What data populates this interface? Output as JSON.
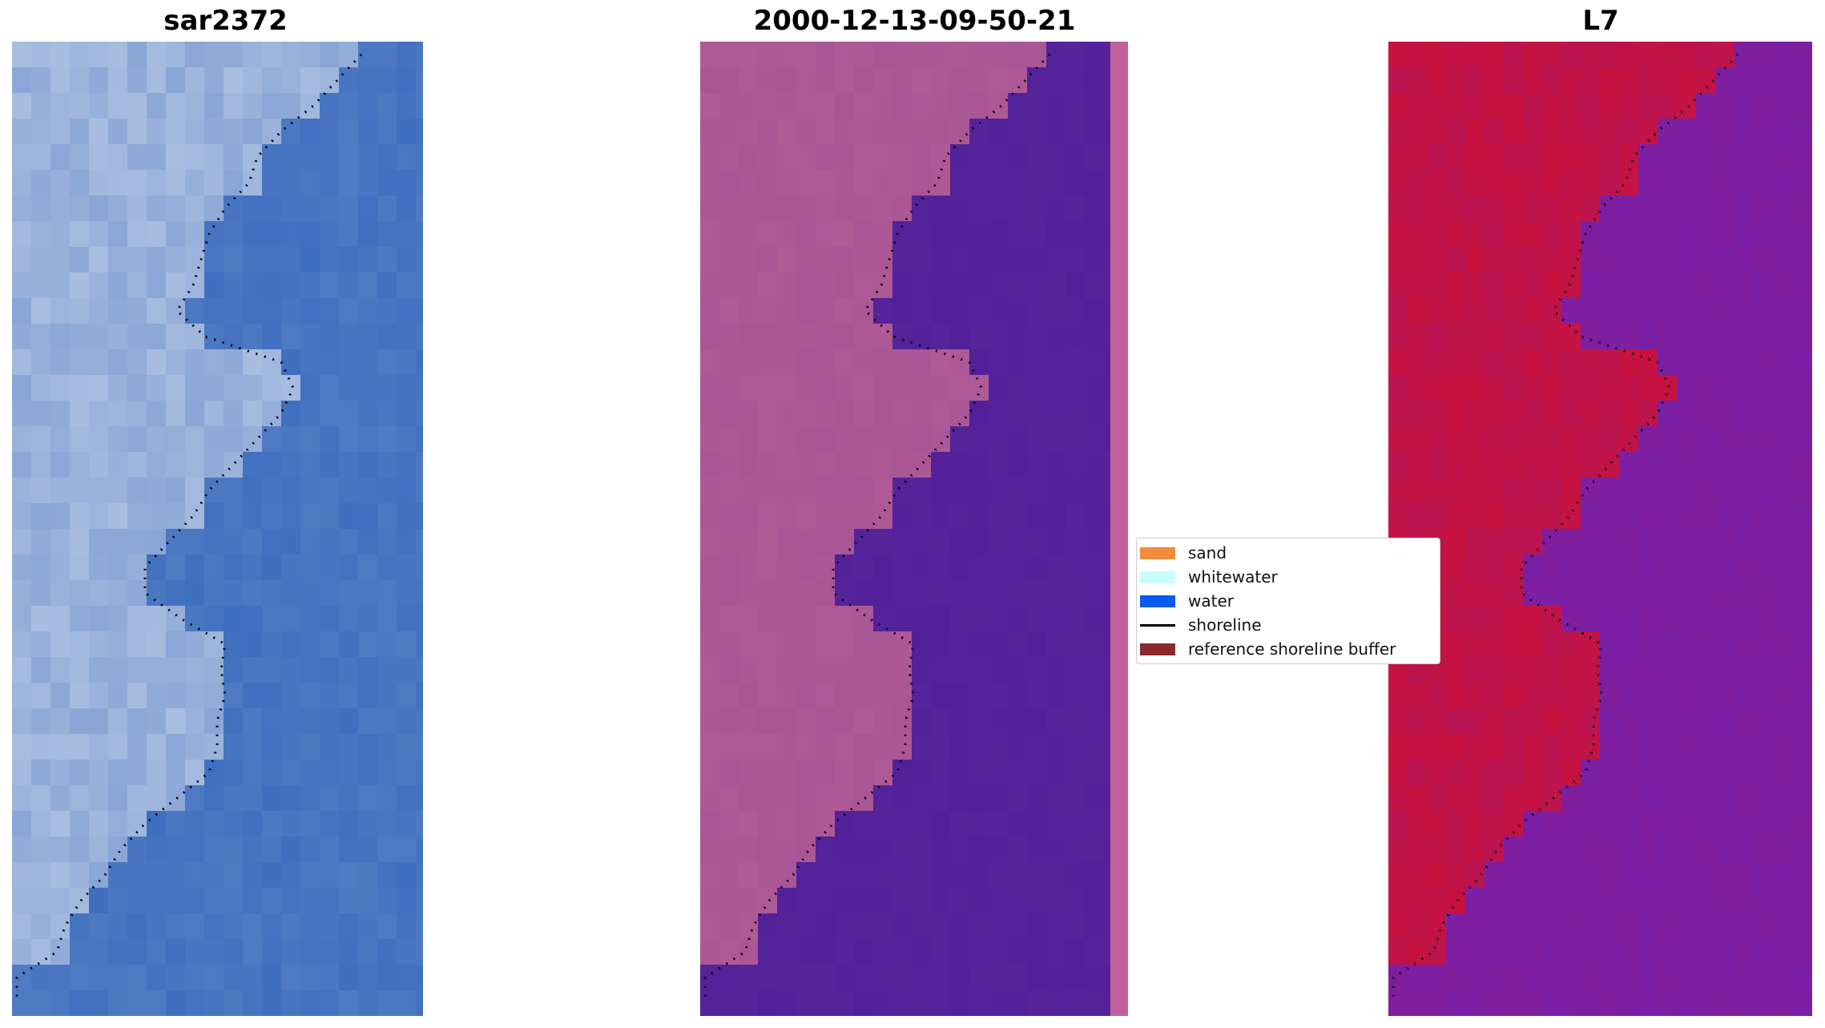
{
  "panels": [
    {
      "title": "sar2372"
    },
    {
      "title": "2000-12-13-09-50-21"
    },
    {
      "title": "L7"
    }
  ],
  "legend": {
    "items": [
      {
        "label": "sand",
        "color": "#f58a3d",
        "kind": "patch"
      },
      {
        "label": "whitewater",
        "color": "#c7fdfa",
        "kind": "patch"
      },
      {
        "label": "water",
        "color": "#0a5bf0",
        "kind": "patch"
      },
      {
        "label": "shoreline",
        "color": "#000000",
        "kind": "line"
      },
      {
        "label": "reference shoreline buffer",
        "color": "#8b2a2e",
        "kind": "patch"
      }
    ]
  },
  "colors": {
    "water_rgb": "#3f6fbf",
    "land_rgb": "#a9bde0",
    "classified_water": "#52219a",
    "classified_land": "#b05a96",
    "classified_buffer_strip": "#c0609a",
    "index_water": "#7a1fa6",
    "index_land": "#c8123f"
  }
}
